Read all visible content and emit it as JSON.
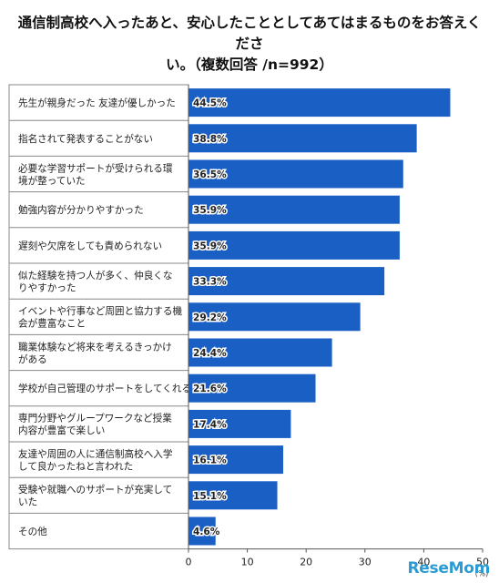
{
  "title_line1": "通信制高校へ入ったあと、安心したこととしてあてはまるものをお答えくださ",
  "title_line2": "い。（複数回答 /n=992）",
  "logo_text": "ReseMom",
  "chart_data": {
    "type": "bar",
    "orientation": "horizontal",
    "categories": [
      "先生が親身だった 友達が優しかった",
      "指名されて発表することがない",
      "必要な学習サポートが受けられる環境が整っていた",
      "勉強内容が分かりやすかった",
      "遅刻や欠席をしても責められない",
      "似た経験を持つ人が多く、仲良くなりやすかった",
      "イベントや行事など周囲と協力する機会が豊富なこと",
      "職業体験など将来を考えるきっかけがある",
      "学校が自己管理のサポートをしてくれる",
      "専門分野やグループワークなど授業内容が豊富で楽しい",
      "友達や周囲の人に通信制高校へ入学して良かったねと言われた",
      "受験や就職へのサポートが充実していた",
      "その他"
    ],
    "category_lines": [
      [
        "先生が親身だった 友達が優しかった"
      ],
      [
        "指名されて発表することがない"
      ],
      [
        "必要な学習サポートが受けられる環",
        "境が整っていた"
      ],
      [
        "勉強内容が分かりやすかった"
      ],
      [
        "遅刻や欠席をしても責められない"
      ],
      [
        "似た経験を持つ人が多く、仲良くな",
        "りやすかった"
      ],
      [
        "イベントや行事など周囲と協力する機",
        "会が豊富なこと"
      ],
      [
        "職業体験など将来を考えるきっかけ",
        "がある"
      ],
      [
        "学校が自己管理のサポートをしてくれる"
      ],
      [
        "専門分野やグループワークなど授業",
        "内容が豊富で楽しい"
      ],
      [
        "友達や周囲の人に通信制高校へ入学",
        "して良かったねと言われた"
      ],
      [
        "受験や就職へのサポートが充実して",
        "いた"
      ],
      [
        "その他"
      ]
    ],
    "values": [
      44.5,
      38.8,
      36.5,
      35.9,
      35.9,
      33.3,
      29.2,
      24.4,
      21.6,
      17.4,
      16.1,
      15.1,
      4.6
    ],
    "value_labels": [
      "44.5%",
      "38.8%",
      "36.5%",
      "35.9%",
      "35.9%",
      "33.3%",
      "29.2%",
      "24.4%",
      "21.6%",
      "17.4%",
      "16.1%",
      "15.1%",
      "4.6%"
    ],
    "xlim": [
      0,
      50
    ],
    "xticks": [
      "0",
      "10",
      "20",
      "30",
      "40",
      "50"
    ],
    "unit": "(%)",
    "bar_color": "#1a60c4",
    "grid": false
  }
}
